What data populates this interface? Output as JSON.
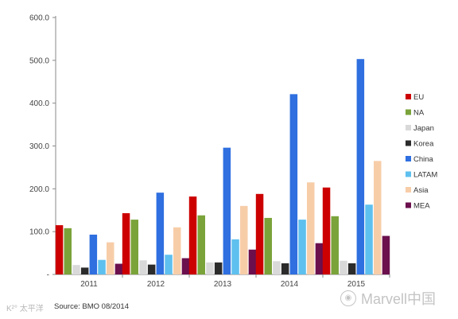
{
  "chart_data": {
    "type": "bar",
    "categories": [
      "2011",
      "2012",
      "2013",
      "2014",
      "2015"
    ],
    "ylim": [
      0,
      600
    ],
    "yticks": [
      "600.0",
      "500.0",
      "400.0",
      "300.0",
      "200.0",
      "100.0",
      "-"
    ],
    "ytick_values": [
      600,
      500,
      400,
      300,
      200,
      100,
      0
    ],
    "grid": false,
    "legend_position": "right",
    "series": [
      {
        "name": "EU",
        "color": "#cc0000",
        "values": [
          115,
          143,
          182,
          188,
          203
        ]
      },
      {
        "name": "NA",
        "color": "#7aa33a",
        "values": [
          108,
          128,
          138,
          132,
          136
        ]
      },
      {
        "name": "Japan",
        "color": "#d9d9d9",
        "values": [
          22,
          33,
          28,
          31,
          32
        ]
      },
      {
        "name": "Korea",
        "color": "#2b2b2b",
        "values": [
          16,
          23,
          28,
          26,
          26
        ]
      },
      {
        "name": "China",
        "color": "#2f6fe0",
        "values": [
          93,
          191,
          296,
          421,
          503
        ]
      },
      {
        "name": "LATAM",
        "color": "#5ec0ee",
        "values": [
          34,
          46,
          82,
          128,
          163
        ]
      },
      {
        "name": "Asia",
        "color": "#f7cda8",
        "values": [
          75,
          110,
          160,
          215,
          265
        ]
      },
      {
        "name": "MEA",
        "color": "#6b0f4d",
        "values": [
          25,
          38,
          58,
          73,
          90
        ]
      }
    ]
  },
  "source": "Source: BMO 08/2014",
  "watermark_left": "K²° 太平洋",
  "watermark_right": "Marvell中国",
  "watermark_icon": "wechat-icon"
}
